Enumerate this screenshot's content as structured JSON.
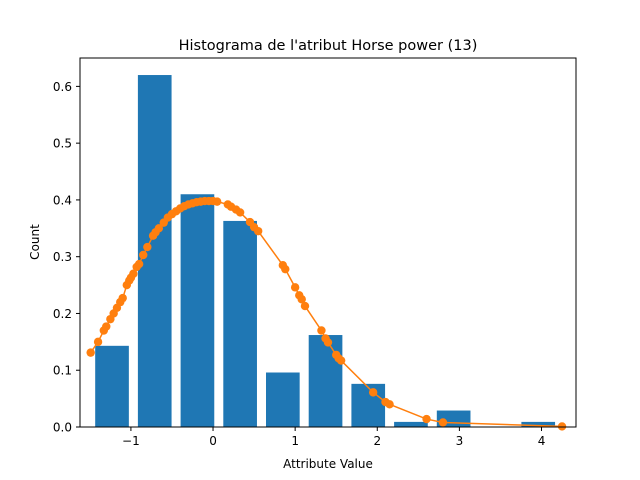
{
  "chart_data": {
    "type": "bar",
    "title": "Histograma de l'atribut Horse power (13)",
    "xlabel": "Attribute Value",
    "ylabel": "Count",
    "xlim": [
      -1.62,
      4.42
    ],
    "ylim": [
      0,
      0.65
    ],
    "x_ticks": [
      -1,
      0,
      1,
      2,
      3,
      4
    ],
    "x_tick_labels": [
      "−1",
      "0",
      "1",
      "2",
      "3",
      "4"
    ],
    "y_ticks": [
      0.0,
      0.1,
      0.2,
      0.3,
      0.4,
      0.5,
      0.6
    ],
    "y_tick_labels": [
      "0.0",
      "0.1",
      "0.2",
      "0.3",
      "0.4",
      "0.5",
      "0.6"
    ],
    "grid": false,
    "legend": "none",
    "colors": {
      "bars": "#1f77b4",
      "curve": "#ff7f0e"
    },
    "series": [
      {
        "kind": "bar",
        "bin_width": 0.52,
        "bar_width": 0.41,
        "values": [
          {
            "x": -1.23,
            "y": 0.143
          },
          {
            "x": -0.71,
            "y": 0.62
          },
          {
            "x": -0.19,
            "y": 0.41
          },
          {
            "x": 0.33,
            "y": 0.363
          },
          {
            "x": 0.85,
            "y": 0.096
          },
          {
            "x": 1.37,
            "y": 0.162
          },
          {
            "x": 1.89,
            "y": 0.076
          },
          {
            "x": 2.41,
            "y": 0.009
          },
          {
            "x": 2.93,
            "y": 0.029
          },
          {
            "x": 3.96,
            "y": 0.009
          }
        ]
      },
      {
        "kind": "line-with-markers",
        "points": [
          [
            -1.49,
            0.131
          ],
          [
            -1.4,
            0.15
          ],
          [
            -1.33,
            0.17
          ],
          [
            -1.3,
            0.177
          ],
          [
            -1.25,
            0.19
          ],
          [
            -1.21,
            0.2
          ],
          [
            -1.17,
            0.21
          ],
          [
            -1.13,
            0.22
          ],
          [
            -1.1,
            0.227
          ],
          [
            -1.05,
            0.25
          ],
          [
            -1.02,
            0.258
          ],
          [
            -1.0,
            0.263
          ],
          [
            -0.97,
            0.27
          ],
          [
            -0.93,
            0.282
          ],
          [
            -0.9,
            0.287
          ],
          [
            -0.85,
            0.303
          ],
          [
            -0.8,
            0.317
          ],
          [
            -0.73,
            0.337
          ],
          [
            -0.7,
            0.343
          ],
          [
            -0.66,
            0.35
          ],
          [
            -0.6,
            0.36
          ],
          [
            -0.55,
            0.369
          ],
          [
            -0.5,
            0.375
          ],
          [
            -0.45,
            0.38
          ],
          [
            -0.4,
            0.385
          ],
          [
            -0.35,
            0.389
          ],
          [
            -0.3,
            0.392
          ],
          [
            -0.25,
            0.394
          ],
          [
            -0.2,
            0.396
          ],
          [
            -0.15,
            0.397
          ],
          [
            -0.1,
            0.398
          ],
          [
            -0.05,
            0.398
          ],
          [
            0.0,
            0.398
          ],
          [
            0.05,
            0.397
          ],
          [
            0.18,
            0.392
          ],
          [
            0.22,
            0.388
          ],
          [
            0.28,
            0.383
          ],
          [
            0.33,
            0.378
          ],
          [
            0.45,
            0.361
          ],
          [
            0.5,
            0.352
          ],
          [
            0.55,
            0.345
          ],
          [
            0.85,
            0.285
          ],
          [
            0.88,
            0.278
          ],
          [
            1.0,
            0.246
          ],
          [
            1.05,
            0.232
          ],
          [
            1.08,
            0.225
          ],
          [
            1.12,
            0.213
          ],
          [
            1.32,
            0.17
          ],
          [
            1.37,
            0.156
          ],
          [
            1.4,
            0.149
          ],
          [
            1.5,
            0.127
          ],
          [
            1.53,
            0.121
          ],
          [
            1.56,
            0.117
          ],
          [
            1.95,
            0.061
          ],
          [
            2.1,
            0.044
          ],
          [
            2.15,
            0.04
          ],
          [
            2.6,
            0.014
          ],
          [
            2.8,
            0.008
          ],
          [
            4.25,
            0.001
          ]
        ]
      }
    ]
  }
}
